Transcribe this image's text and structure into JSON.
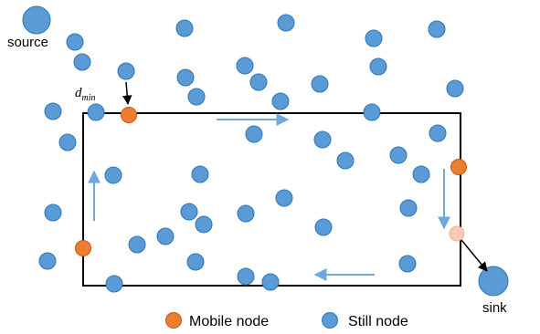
{
  "labels": {
    "source": "source",
    "sink": "sink",
    "d_min_base": "d",
    "d_min_sub": "min"
  },
  "legend": {
    "mobile": "Mobile node",
    "still": "Still node"
  },
  "colors": {
    "still_fill": "#5b9bd5",
    "still_stroke": "#2e75b6",
    "mobile_fill": "#ed7d31",
    "mobile_stroke": "#c55a11",
    "mobile_faded_fill": "#f8c9b4",
    "arrow_blue": "#6fa8dc",
    "boundary": "#000000"
  },
  "icons": {
    "mobile": "orange-circle-icon",
    "still": "blue-circle-icon"
  }
}
